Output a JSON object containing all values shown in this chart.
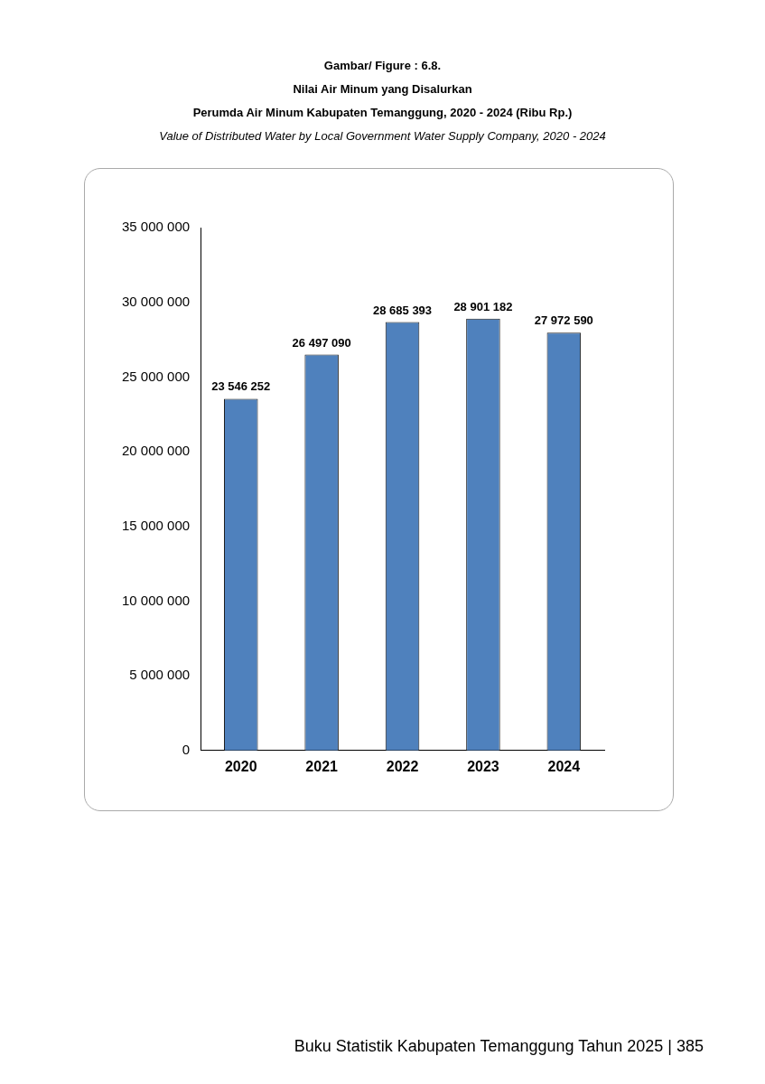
{
  "chart_data": {
    "type": "bar",
    "title": "Gambar/ Figure : 6.8.\nNilai Air Minum yang Disalurkan\nPerumda Air Minum Kabupaten Temanggung, 2020 - 2024 (Ribu Rp.)",
    "subtitle": "Value of Distributed Water by Local Government Water Supply Company, 2020 - 2024",
    "categories": [
      "2020",
      "2021",
      "2022",
      "2023",
      "2024"
    ],
    "values": [
      23546252,
      26497090,
      28685393,
      28901182,
      27972590
    ],
    "value_labels": [
      "23 546 252",
      "26 497 090",
      "28 685 393",
      "28 901 182",
      "27 972 590"
    ],
    "color": "#4f81bd",
    "ylim": [
      0,
      35000000
    ],
    "yticks": [
      {
        "value": 0,
        "label": "0"
      },
      {
        "value": 5000000,
        "label": "5 000 000"
      },
      {
        "value": 10000000,
        "label": "10 000 000"
      },
      {
        "value": 15000000,
        "label": "15 000 000"
      },
      {
        "value": 20000000,
        "label": "20 000 000"
      },
      {
        "value": 25000000,
        "label": "25 000 000"
      },
      {
        "value": 30000000,
        "label": "30 000 000"
      },
      {
        "value": 35000000,
        "label": "35 000 000"
      }
    ],
    "grid": false,
    "legend": false,
    "annotations": [
      "Buku Statistik Kabupaten Temanggung Tahun 2025 |  385"
    ]
  }
}
